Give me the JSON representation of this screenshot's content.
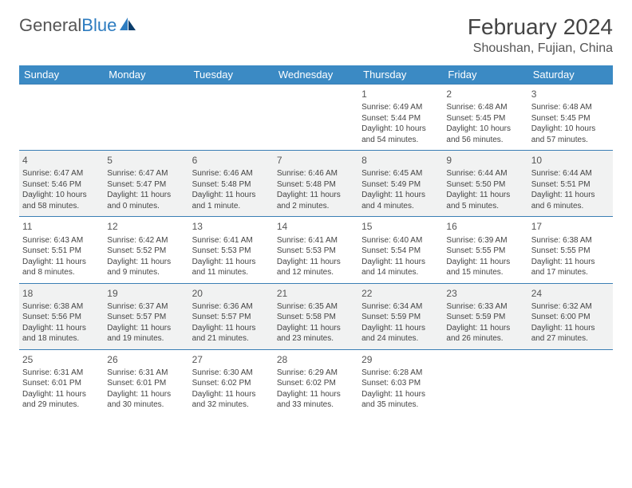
{
  "brand": {
    "name_part1": "General",
    "name_part2": "Blue"
  },
  "title": "February 2024",
  "location": "Shoushan, Fujian, China",
  "colors": {
    "header_bg": "#3b8ac4",
    "header_text": "#ffffff",
    "row_alt_bg": "#f1f2f2",
    "row_bg": "#ffffff",
    "border": "#3b7fb5",
    "brand_blue": "#2d7cc0",
    "text": "#444444"
  },
  "weekdays": [
    "Sunday",
    "Monday",
    "Tuesday",
    "Wednesday",
    "Thursday",
    "Friday",
    "Saturday"
  ],
  "weeks": [
    [
      null,
      null,
      null,
      null,
      {
        "day": "1",
        "sunrise": "6:49 AM",
        "sunset": "5:44 PM",
        "daylight": "10 hours and 54 minutes."
      },
      {
        "day": "2",
        "sunrise": "6:48 AM",
        "sunset": "5:45 PM",
        "daylight": "10 hours and 56 minutes."
      },
      {
        "day": "3",
        "sunrise": "6:48 AM",
        "sunset": "5:45 PM",
        "daylight": "10 hours and 57 minutes."
      }
    ],
    [
      {
        "day": "4",
        "sunrise": "6:47 AM",
        "sunset": "5:46 PM",
        "daylight": "10 hours and 58 minutes."
      },
      {
        "day": "5",
        "sunrise": "6:47 AM",
        "sunset": "5:47 PM",
        "daylight": "11 hours and 0 minutes."
      },
      {
        "day": "6",
        "sunrise": "6:46 AM",
        "sunset": "5:48 PM",
        "daylight": "11 hours and 1 minute."
      },
      {
        "day": "7",
        "sunrise": "6:46 AM",
        "sunset": "5:48 PM",
        "daylight": "11 hours and 2 minutes."
      },
      {
        "day": "8",
        "sunrise": "6:45 AM",
        "sunset": "5:49 PM",
        "daylight": "11 hours and 4 minutes."
      },
      {
        "day": "9",
        "sunrise": "6:44 AM",
        "sunset": "5:50 PM",
        "daylight": "11 hours and 5 minutes."
      },
      {
        "day": "10",
        "sunrise": "6:44 AM",
        "sunset": "5:51 PM",
        "daylight": "11 hours and 6 minutes."
      }
    ],
    [
      {
        "day": "11",
        "sunrise": "6:43 AM",
        "sunset": "5:51 PM",
        "daylight": "11 hours and 8 minutes."
      },
      {
        "day": "12",
        "sunrise": "6:42 AM",
        "sunset": "5:52 PM",
        "daylight": "11 hours and 9 minutes."
      },
      {
        "day": "13",
        "sunrise": "6:41 AM",
        "sunset": "5:53 PM",
        "daylight": "11 hours and 11 minutes."
      },
      {
        "day": "14",
        "sunrise": "6:41 AM",
        "sunset": "5:53 PM",
        "daylight": "11 hours and 12 minutes."
      },
      {
        "day": "15",
        "sunrise": "6:40 AM",
        "sunset": "5:54 PM",
        "daylight": "11 hours and 14 minutes."
      },
      {
        "day": "16",
        "sunrise": "6:39 AM",
        "sunset": "5:55 PM",
        "daylight": "11 hours and 15 minutes."
      },
      {
        "day": "17",
        "sunrise": "6:38 AM",
        "sunset": "5:55 PM",
        "daylight": "11 hours and 17 minutes."
      }
    ],
    [
      {
        "day": "18",
        "sunrise": "6:38 AM",
        "sunset": "5:56 PM",
        "daylight": "11 hours and 18 minutes."
      },
      {
        "day": "19",
        "sunrise": "6:37 AM",
        "sunset": "5:57 PM",
        "daylight": "11 hours and 19 minutes."
      },
      {
        "day": "20",
        "sunrise": "6:36 AM",
        "sunset": "5:57 PM",
        "daylight": "11 hours and 21 minutes."
      },
      {
        "day": "21",
        "sunrise": "6:35 AM",
        "sunset": "5:58 PM",
        "daylight": "11 hours and 23 minutes."
      },
      {
        "day": "22",
        "sunrise": "6:34 AM",
        "sunset": "5:59 PM",
        "daylight": "11 hours and 24 minutes."
      },
      {
        "day": "23",
        "sunrise": "6:33 AM",
        "sunset": "5:59 PM",
        "daylight": "11 hours and 26 minutes."
      },
      {
        "day": "24",
        "sunrise": "6:32 AM",
        "sunset": "6:00 PM",
        "daylight": "11 hours and 27 minutes."
      }
    ],
    [
      {
        "day": "25",
        "sunrise": "6:31 AM",
        "sunset": "6:01 PM",
        "daylight": "11 hours and 29 minutes."
      },
      {
        "day": "26",
        "sunrise": "6:31 AM",
        "sunset": "6:01 PM",
        "daylight": "11 hours and 30 minutes."
      },
      {
        "day": "27",
        "sunrise": "6:30 AM",
        "sunset": "6:02 PM",
        "daylight": "11 hours and 32 minutes."
      },
      {
        "day": "28",
        "sunrise": "6:29 AM",
        "sunset": "6:02 PM",
        "daylight": "11 hours and 33 minutes."
      },
      {
        "day": "29",
        "sunrise": "6:28 AM",
        "sunset": "6:03 PM",
        "daylight": "11 hours and 35 minutes."
      },
      null,
      null
    ]
  ],
  "labels": {
    "sunrise": "Sunrise: ",
    "sunset": "Sunset: ",
    "daylight": "Daylight: "
  }
}
